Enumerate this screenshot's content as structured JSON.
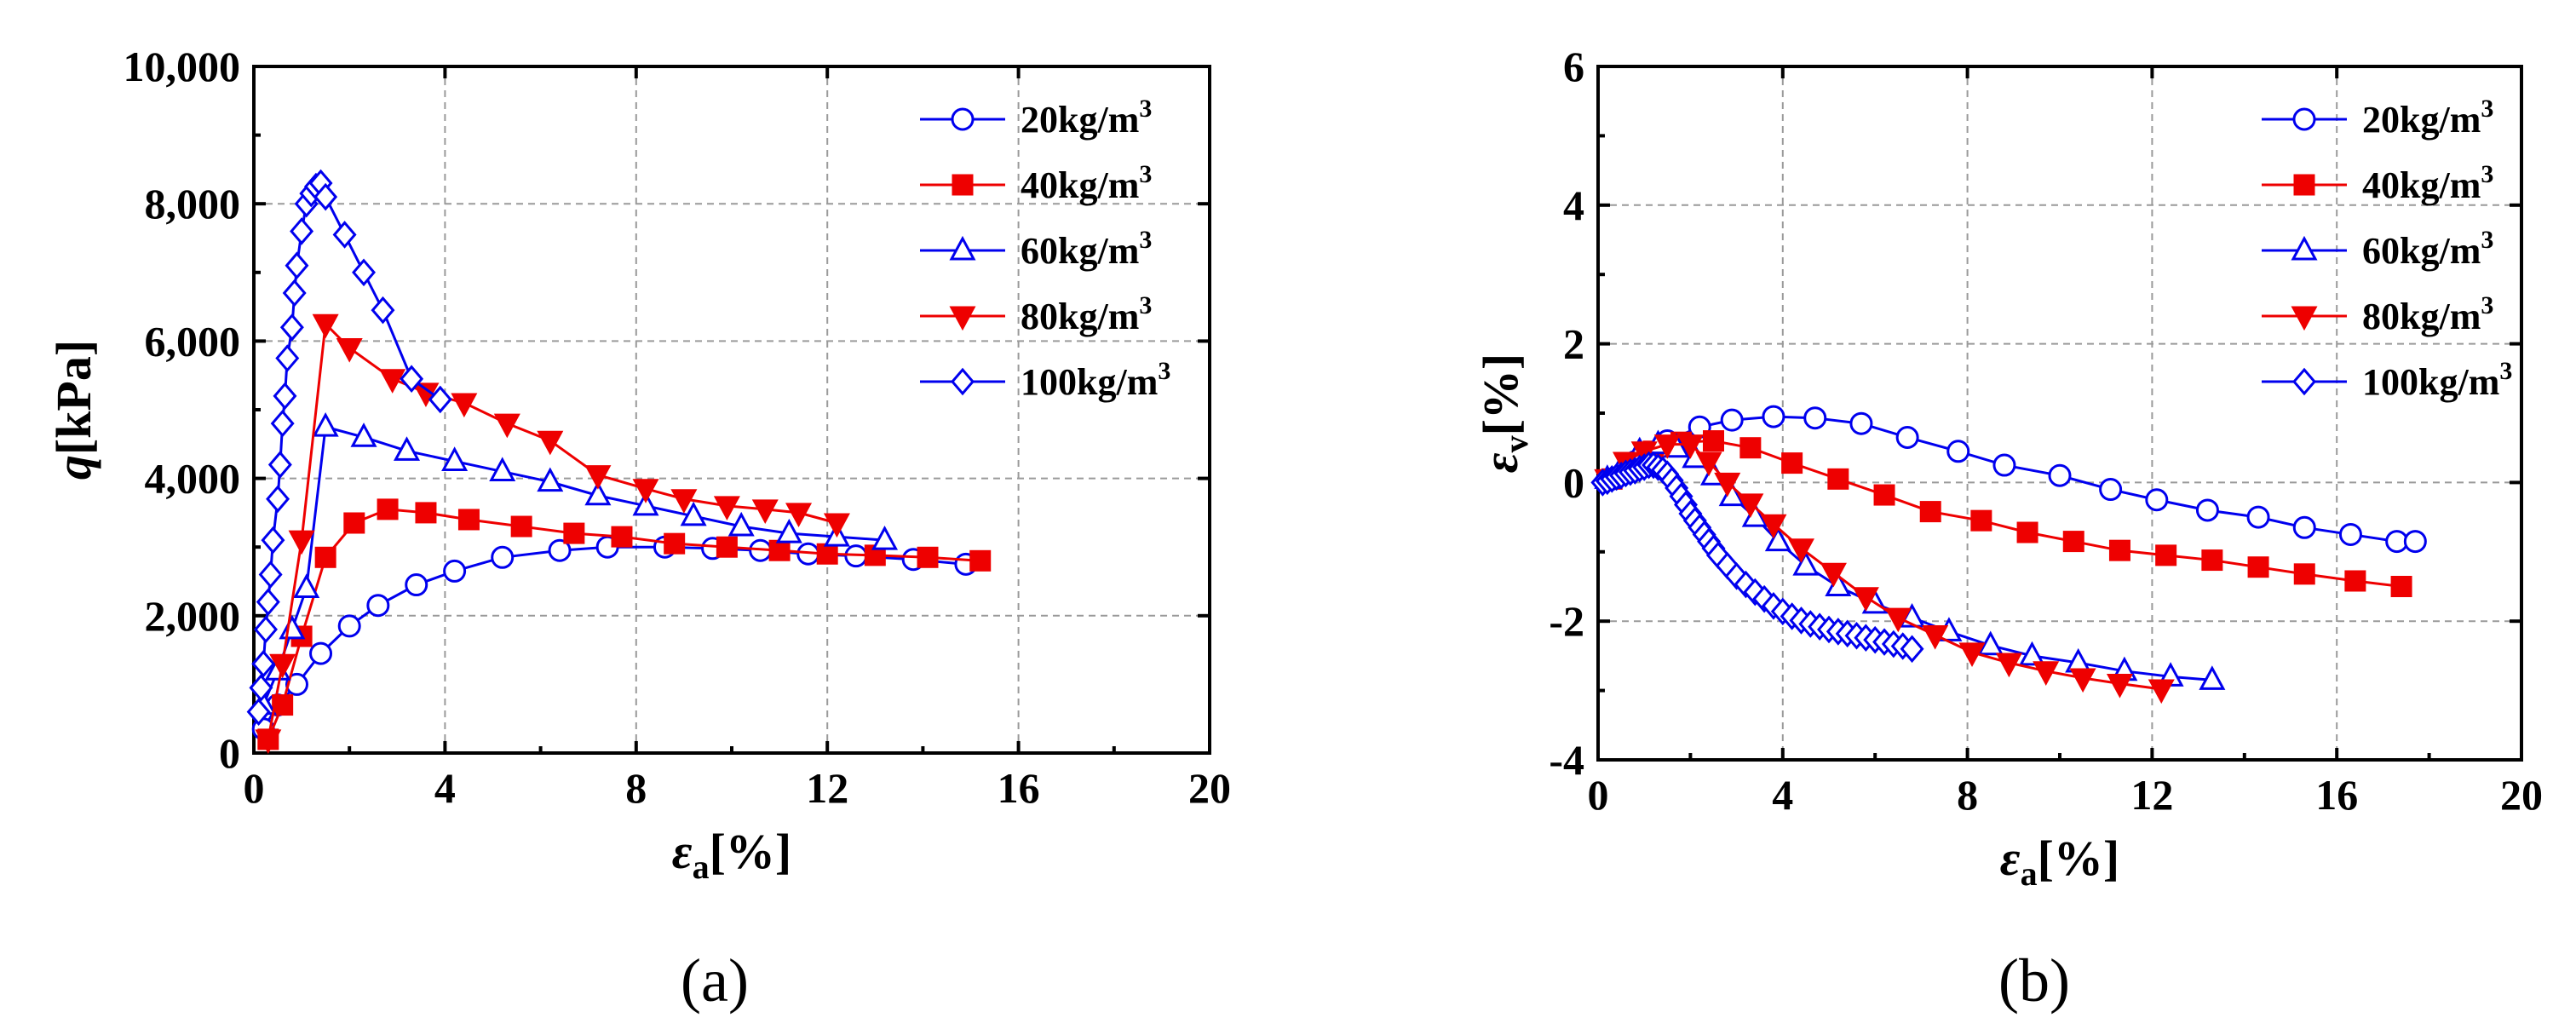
{
  "chart_data": [
    {
      "type": "line",
      "panel_label": "(a)",
      "xlabel_sym": "ε",
      "xlabel_sub": "a",
      "xlabel_unit": "[%]",
      "ylabel_sym": "q",
      "ylabel_unit": "[kPa]",
      "xlim": [
        0,
        20
      ],
      "ylim": [
        0,
        10000
      ],
      "xticks": [
        0,
        4,
        8,
        12,
        16,
        20
      ],
      "yticks": [
        0,
        2000,
        4000,
        6000,
        8000,
        10000
      ],
      "xtick_labels": [
        "0",
        "4",
        "8",
        "12",
        "16",
        "20"
      ],
      "ytick_labels": [
        "0",
        "2,000",
        "4,000",
        "6,000",
        "8,000",
        "10,000"
      ],
      "grid": true,
      "legend_position": "top-right",
      "series": [
        {
          "name": "20kg/m",
          "sup": "3",
          "color": "#0000ee",
          "marker": "circle",
          "filled": false,
          "x": [
            0.2,
            0.5,
            0.9,
            1.4,
            2.0,
            2.6,
            3.4,
            4.2,
            5.2,
            6.4,
            7.4,
            8.6,
            9.6,
            10.6,
            11.6,
            12.6,
            13.8,
            14.9
          ],
          "y": [
            350,
            700,
            1000,
            1450,
            1850,
            2150,
            2450,
            2650,
            2850,
            2950,
            3000,
            3000,
            2980,
            2950,
            2900,
            2870,
            2820,
            2750
          ]
        },
        {
          "name": "40kg/m",
          "sup": "3",
          "color": "#ee0000",
          "marker": "square",
          "filled": true,
          "x": [
            0.3,
            0.6,
            1.0,
            1.5,
            2.1,
            2.8,
            3.6,
            4.5,
            5.6,
            6.7,
            7.7,
            8.8,
            9.9,
            11.0,
            12.0,
            13.0,
            14.1,
            15.2
          ],
          "y": [
            200,
            700,
            1700,
            2850,
            3350,
            3550,
            3500,
            3400,
            3300,
            3200,
            3150,
            3050,
            3000,
            2950,
            2900,
            2880,
            2850,
            2800
          ]
        },
        {
          "name": "60kg/m",
          "sup": "3",
          "color": "#0000ee",
          "marker": "triangle",
          "filled": false,
          "x": [
            0.2,
            0.5,
            0.8,
            1.1,
            1.5,
            2.3,
            3.2,
            4.2,
            5.2,
            6.2,
            7.2,
            8.2,
            9.2,
            10.2,
            11.2,
            12.2,
            13.2
          ],
          "y": [
            700,
            1200,
            1800,
            2400,
            4750,
            4600,
            4400,
            4250,
            4100,
            3950,
            3750,
            3600,
            3450,
            3300,
            3200,
            3150,
            3100
          ]
        },
        {
          "name": "80kg/m",
          "sup": "3",
          "color": "#ee0000",
          "marker": "triangle-down",
          "filled": true,
          "x": [
            0.3,
            0.6,
            1.0,
            1.5,
            2.0,
            2.9,
            3.6,
            4.4,
            5.3,
            6.2,
            7.2,
            8.2,
            9.0,
            9.9,
            10.7,
            11.4,
            12.2
          ],
          "y": [
            200,
            1300,
            3100,
            6250,
            5900,
            5450,
            5250,
            5100,
            4800,
            4550,
            4050,
            3850,
            3700,
            3600,
            3550,
            3500,
            3350
          ]
        },
        {
          "name": "100kg/m",
          "sup": "3",
          "color": "#0000ee",
          "marker": "diamond",
          "filled": false,
          "x": [
            0.1,
            0.15,
            0.2,
            0.25,
            0.3,
            0.35,
            0.4,
            0.5,
            0.55,
            0.6,
            0.65,
            0.7,
            0.8,
            0.85,
            0.9,
            1.0,
            1.1,
            1.2,
            1.3,
            1.4,
            1.5,
            1.9,
            2.3,
            2.7,
            3.3,
            3.9
          ],
          "y": [
            600,
            950,
            1300,
            1800,
            2200,
            2600,
            3100,
            3700,
            4200,
            4800,
            5200,
            5750,
            6200,
            6700,
            7100,
            7600,
            8000,
            8150,
            8250,
            8300,
            8100,
            7550,
            7000,
            6450,
            5450,
            5150
          ]
        }
      ]
    },
    {
      "type": "line",
      "panel_label": "(b)",
      "xlabel_sym": "ε",
      "xlabel_sub": "a",
      "xlabel_unit": "[%]",
      "ylabel_sym": "ε",
      "ylabel_sub": "v",
      "ylabel_unit": "[%]",
      "xlim": [
        0,
        20
      ],
      "ylim": [
        -4,
        6
      ],
      "xticks": [
        0,
        4,
        8,
        12,
        16,
        20
      ],
      "yticks": [
        -4,
        -2,
        0,
        2,
        4,
        6
      ],
      "xtick_labels": [
        "0",
        "4",
        "8",
        "12",
        "16",
        "20"
      ],
      "ytick_labels": [
        "-4",
        "-2",
        "0",
        "2",
        "4",
        "6"
      ],
      "grid": true,
      "legend_position": "top-right",
      "series": [
        {
          "name": "20kg/m",
          "sup": "3",
          "color": "#0000ee",
          "marker": "circle",
          "filled": false,
          "x": [
            0.3,
            0.8,
            1.5,
            2.2,
            2.9,
            3.8,
            4.7,
            5.7,
            6.7,
            7.8,
            8.8,
            10.0,
            11.1,
            12.1,
            13.2,
            14.3,
            15.3,
            16.3,
            17.3,
            17.7
          ],
          "y": [
            0.05,
            0.3,
            0.6,
            0.8,
            0.9,
            0.95,
            0.93,
            0.85,
            0.65,
            0.45,
            0.25,
            0.1,
            -0.1,
            -0.25,
            -0.4,
            -0.5,
            -0.65,
            -0.75,
            -0.85,
            -0.85
          ],
          "pick": [
            0,
            1,
            2,
            3,
            4,
            5,
            6,
            7,
            8,
            9,
            10,
            11,
            12,
            13,
            14,
            15,
            16,
            17,
            19
          ]
        },
        {
          "name": "40kg/m",
          "sup": "3",
          "color": "#ee0000",
          "marker": "square",
          "filled": true,
          "x": [
            0.3,
            0.7,
            1.2,
            1.8,
            2.5,
            3.3,
            4.2,
            5.2,
            6.2,
            7.2,
            8.3,
            9.3,
            10.3,
            11.3,
            12.3,
            13.3,
            14.3,
            15.3,
            16.4,
            17.4
          ],
          "y": [
            0.05,
            0.2,
            0.45,
            0.58,
            0.6,
            0.5,
            0.28,
            0.05,
            -0.18,
            -0.42,
            -0.55,
            -0.72,
            -0.85,
            -0.98,
            -1.05,
            -1.12,
            -1.22,
            -1.32,
            -1.42,
            -1.5
          ]
        },
        {
          "name": "60kg/m",
          "sup": "3",
          "color": "#0000ee",
          "marker": "triangle",
          "filled": false,
          "x": [
            0.2,
            0.5,
            0.9,
            1.3,
            1.7,
            2.1,
            2.5,
            2.9,
            3.4,
            3.9,
            4.5,
            5.2,
            6.0,
            6.8,
            7.6,
            8.5,
            9.4,
            10.4,
            11.4,
            12.4,
            13.3
          ],
          "y": [
            0.05,
            0.2,
            0.45,
            0.55,
            0.5,
            0.35,
            0.1,
            -0.2,
            -0.5,
            -0.85,
            -1.2,
            -1.5,
            -1.75,
            -1.95,
            -2.15,
            -2.35,
            -2.5,
            -2.6,
            -2.72,
            -2.8,
            -2.85
          ]
        },
        {
          "name": "80kg/m",
          "sup": "3",
          "color": "#ee0000",
          "marker": "triangle-down",
          "filled": true,
          "x": [
            0.2,
            0.6,
            1.0,
            1.5,
            2.0,
            2.4,
            2.8,
            3.3,
            3.8,
            4.4,
            5.1,
            5.8,
            6.5,
            7.3,
            8.1,
            8.9,
            9.7,
            10.5,
            11.3,
            12.2
          ],
          "y": [
            0.05,
            0.3,
            0.45,
            0.55,
            0.55,
            0.3,
            0.0,
            -0.3,
            -0.6,
            -0.95,
            -1.3,
            -1.65,
            -1.95,
            -2.2,
            -2.45,
            -2.6,
            -2.72,
            -2.82,
            -2.9,
            -2.98
          ]
        },
        {
          "name": "100kg/m",
          "sup": "3",
          "color": "#0000ee",
          "marker": "diamond",
          "filled": false,
          "x": [
            0.1,
            0.2,
            0.3,
            0.4,
            0.5,
            0.6,
            0.7,
            0.8,
            0.9,
            1.0,
            1.1,
            1.2,
            1.3,
            1.4,
            1.5,
            1.6,
            1.7,
            1.8,
            1.9,
            2.0,
            2.1,
            2.2,
            2.3,
            2.4,
            2.5,
            2.6,
            2.8,
            3.0,
            3.2,
            3.4,
            3.6,
            3.8,
            4.0,
            4.2,
            4.4,
            4.6,
            4.8,
            5.0,
            5.2,
            5.4,
            5.6,
            5.8,
            6.0,
            6.2,
            6.4,
            6.6,
            6.8
          ],
          "y": [
            0.0,
            0.02,
            0.05,
            0.08,
            0.1,
            0.13,
            0.15,
            0.17,
            0.2,
            0.22,
            0.25,
            0.25,
            0.22,
            0.18,
            0.12,
            0.03,
            -0.08,
            -0.2,
            -0.32,
            -0.45,
            -0.55,
            -0.65,
            -0.75,
            -0.85,
            -0.95,
            -1.05,
            -1.2,
            -1.35,
            -1.47,
            -1.58,
            -1.68,
            -1.78,
            -1.86,
            -1.93,
            -1.99,
            -2.04,
            -2.08,
            -2.12,
            -2.15,
            -2.18,
            -2.21,
            -2.24,
            -2.27,
            -2.3,
            -2.33,
            -2.36,
            -2.4
          ]
        }
      ]
    }
  ]
}
